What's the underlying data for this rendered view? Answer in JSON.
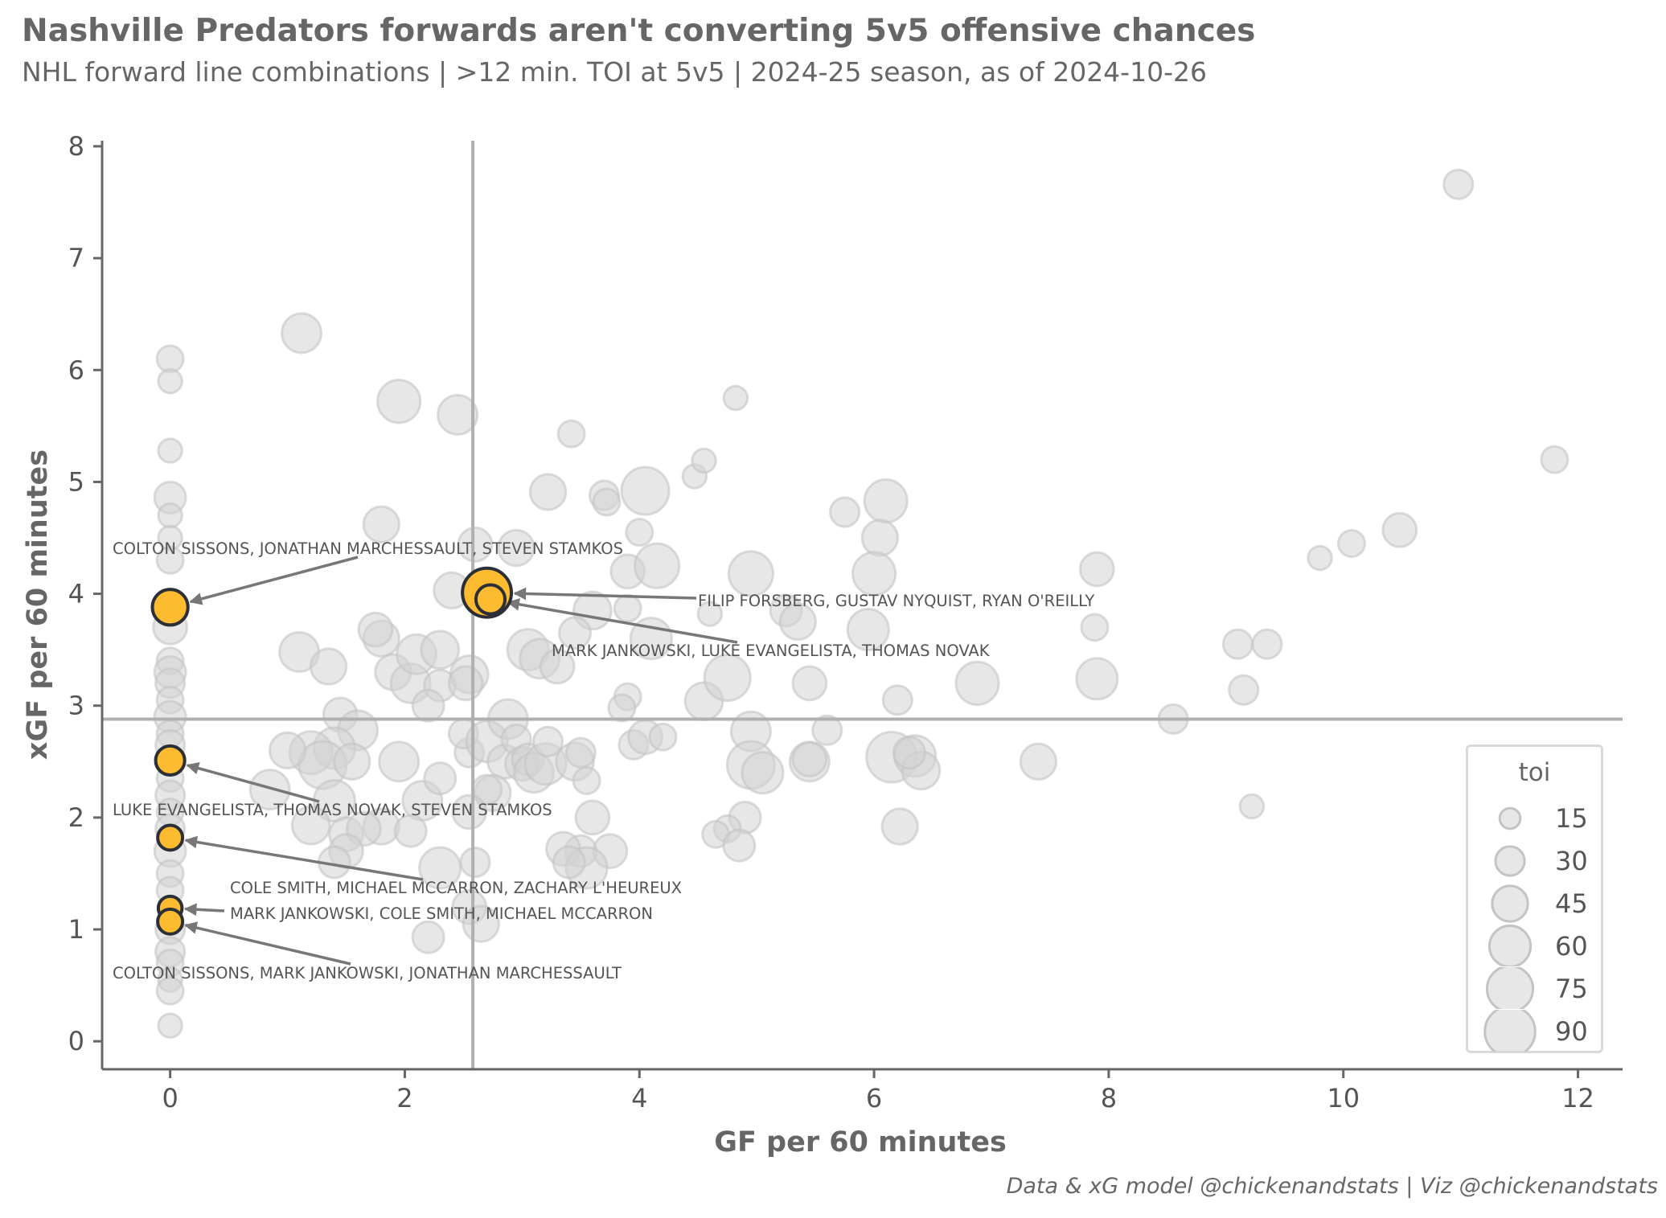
{
  "header": {
    "title": "Nashville Predators forwards aren't converting 5v5 offensive chances",
    "subtitle": "NHL forward line combinations | >12 min. TOI at 5v5 | 2024-25 season, as of 2024-10-26"
  },
  "footer": {
    "credit": "Data & xG model @chickenandstats | Viz @chickenandstats"
  },
  "colors": {
    "highlight": "#FDBB30",
    "highlight_edge": "#2b2f38",
    "background_points": "#d3d3d3",
    "reference_lines": "#b0b0b0",
    "axes": "#666666"
  },
  "chart_data": {
    "type": "scatter",
    "xlabel": "GF per 60 minutes",
    "ylabel": "xGF per 60 minutes",
    "xlim": [
      -0.58,
      12.38
    ],
    "ylim": [
      -0.25,
      8.05
    ],
    "xticks": [
      0,
      2,
      4,
      6,
      8,
      10,
      12
    ],
    "yticks": [
      0,
      1,
      2,
      3,
      4,
      5,
      6,
      7,
      8
    ],
    "reference_lines": {
      "x": 2.58,
      "y": 2.88
    },
    "size_legend": {
      "title": "toi",
      "values": [
        15,
        30,
        45,
        60,
        75,
        90
      ]
    },
    "highlighted_lines": [
      {
        "label": "FILIP FORSBERG, GUSTAV NYQUIST, RYAN O'REILLY",
        "x": 2.7,
        "y": 4.01,
        "toi": 85
      },
      {
        "label": "MARK JANKOWSKI, LUKE EVANGELISTA, THOMAS NOVAK",
        "x": 2.73,
        "y": 3.95,
        "toi": 30
      },
      {
        "label": "COLTON SISSONS, JONATHAN MARCHESSAULT, STEVEN STAMKOS",
        "x": 0.0,
        "y": 3.88,
        "toi": 45
      },
      {
        "label": "LUKE EVANGELISTA, THOMAS NOVAK, STEVEN STAMKOS",
        "x": 0.0,
        "y": 2.51,
        "toi": 30
      },
      {
        "label": "COLE SMITH, MICHAEL MCCARRON, ZACHARY L'HEUREUX",
        "x": 0.0,
        "y": 1.82,
        "toi": 22
      },
      {
        "label": "MARK JANKOWSKI, COLE SMITH, MICHAEL MCCARRON",
        "x": 0.0,
        "y": 1.19,
        "toi": 20
      },
      {
        "label": "COLTON SISSONS, MARK JANKOWSKI, JONATHAN MARCHESSAULT",
        "x": 0.0,
        "y": 1.07,
        "toi": 22
      }
    ],
    "other_lines": [
      {
        "x": 0,
        "y": 6.1,
        "toi": 25
      },
      {
        "x": 0,
        "y": 5.9,
        "toi": 20
      },
      {
        "x": 0,
        "y": 5.28,
        "toi": 20
      },
      {
        "x": 0,
        "y": 4.86,
        "toi": 35
      },
      {
        "x": 0,
        "y": 4.7,
        "toi": 20
      },
      {
        "x": 0,
        "y": 4.5,
        "toi": 20
      },
      {
        "x": 0,
        "y": 4.3,
        "toi": 25
      },
      {
        "x": 0,
        "y": 3.7,
        "toi": 40
      },
      {
        "x": 0,
        "y": 3.4,
        "toi": 25
      },
      {
        "x": 0,
        "y": 3.3,
        "toi": 35
      },
      {
        "x": 0,
        "y": 3.2,
        "toi": 30
      },
      {
        "x": 0,
        "y": 3.05,
        "toi": 25
      },
      {
        "x": 0,
        "y": 2.9,
        "toi": 35
      },
      {
        "x": 0,
        "y": 2.75,
        "toi": 25
      },
      {
        "x": 0,
        "y": 2.65,
        "toi": 30
      },
      {
        "x": 0,
        "y": 2.35,
        "toi": 25
      },
      {
        "x": 0,
        "y": 2.2,
        "toi": 30
      },
      {
        "x": 0,
        "y": 2.05,
        "toi": 25
      },
      {
        "x": 0,
        "y": 1.9,
        "toi": 30
      },
      {
        "x": 0,
        "y": 1.7,
        "toi": 35
      },
      {
        "x": 0,
        "y": 1.5,
        "toi": 25
      },
      {
        "x": 0,
        "y": 1.35,
        "toi": 25
      },
      {
        "x": 0,
        "y": 1.0,
        "toi": 30
      },
      {
        "x": 0,
        "y": 0.8,
        "toi": 30
      },
      {
        "x": 0,
        "y": 0.7,
        "toi": 25
      },
      {
        "x": 0,
        "y": 0.55,
        "toi": 20
      },
      {
        "x": 0,
        "y": 0.45,
        "toi": 25
      },
      {
        "x": 0,
        "y": 0.14,
        "toi": 20
      },
      {
        "x": 1.12,
        "y": 6.33,
        "toi": 55
      },
      {
        "x": 1.95,
        "y": 5.72,
        "toi": 65
      },
      {
        "x": 2.45,
        "y": 5.6,
        "toi": 55
      },
      {
        "x": 1.8,
        "y": 4.62,
        "toi": 45
      },
      {
        "x": 2.6,
        "y": 4.44,
        "toi": 40
      },
      {
        "x": 3.42,
        "y": 5.43,
        "toi": 25
      },
      {
        "x": 3.22,
        "y": 4.91,
        "toi": 45
      },
      {
        "x": 3.7,
        "y": 4.88,
        "toi": 30
      },
      {
        "x": 3.72,
        "y": 4.82,
        "toi": 25
      },
      {
        "x": 4.05,
        "y": 4.92,
        "toi": 80
      },
      {
        "x": 4.47,
        "y": 5.05,
        "toi": 20
      },
      {
        "x": 4.55,
        "y": 5.19,
        "toi": 20
      },
      {
        "x": 4.82,
        "y": 5.75,
        "toi": 20
      },
      {
        "x": 4.0,
        "y": 4.55,
        "toi": 25
      },
      {
        "x": 3.9,
        "y": 4.2,
        "toi": 40
      },
      {
        "x": 4.15,
        "y": 4.25,
        "toi": 70
      },
      {
        "x": 4.95,
        "y": 4.18,
        "toi": 70
      },
      {
        "x": 5.75,
        "y": 4.73,
        "toi": 30
      },
      {
        "x": 6.1,
        "y": 4.83,
        "toi": 65
      },
      {
        "x": 6.05,
        "y": 4.5,
        "toi": 45
      },
      {
        "x": 6.0,
        "y": 4.18,
        "toi": 65
      },
      {
        "x": 2.95,
        "y": 4.41,
        "toi": 45
      },
      {
        "x": 2.4,
        "y": 4.03,
        "toi": 45
      },
      {
        "x": 3.9,
        "y": 3.87,
        "toi": 25
      },
      {
        "x": 3.6,
        "y": 3.85,
        "toi": 50
      },
      {
        "x": 4.1,
        "y": 3.6,
        "toi": 60
      },
      {
        "x": 4.6,
        "y": 3.82,
        "toi": 20
      },
      {
        "x": 5.25,
        "y": 3.85,
        "toi": 35
      },
      {
        "x": 5.35,
        "y": 3.75,
        "toi": 45
      },
      {
        "x": 5.95,
        "y": 3.68,
        "toi": 60
      },
      {
        "x": 3.45,
        "y": 3.65,
        "toi": 35
      },
      {
        "x": 3.05,
        "y": 3.5,
        "toi": 60
      },
      {
        "x": 3.15,
        "y": 3.42,
        "toi": 55
      },
      {
        "x": 3.3,
        "y": 3.35,
        "toi": 40
      },
      {
        "x": 1.1,
        "y": 3.48,
        "toi": 55
      },
      {
        "x": 1.35,
        "y": 3.35,
        "toi": 45
      },
      {
        "x": 1.8,
        "y": 3.6,
        "toi": 45
      },
      {
        "x": 1.75,
        "y": 3.68,
        "toi": 40
      },
      {
        "x": 1.9,
        "y": 3.3,
        "toi": 45
      },
      {
        "x": 2.05,
        "y": 3.2,
        "toi": 55
      },
      {
        "x": 2.1,
        "y": 3.46,
        "toi": 55
      },
      {
        "x": 2.3,
        "y": 3.5,
        "toi": 50
      },
      {
        "x": 2.3,
        "y": 3.18,
        "toi": 35
      },
      {
        "x": 2.2,
        "y": 3.0,
        "toi": 35
      },
      {
        "x": 2.55,
        "y": 3.28,
        "toi": 50
      },
      {
        "x": 2.52,
        "y": 3.2,
        "toi": 40
      },
      {
        "x": 1.45,
        "y": 2.92,
        "toi": 40
      },
      {
        "x": 1.6,
        "y": 2.78,
        "toi": 55
      },
      {
        "x": 1.4,
        "y": 2.62,
        "toi": 60
      },
      {
        "x": 1.2,
        "y": 2.58,
        "toi": 65
      },
      {
        "x": 1.3,
        "y": 2.47,
        "toi": 80
      },
      {
        "x": 1.55,
        "y": 2.5,
        "toi": 45
      },
      {
        "x": 1.0,
        "y": 2.6,
        "toi": 45
      },
      {
        "x": 0.85,
        "y": 2.25,
        "toi": 55
      },
      {
        "x": 1.4,
        "y": 2.15,
        "toi": 60
      },
      {
        "x": 2.15,
        "y": 2.15,
        "toi": 55
      },
      {
        "x": 1.8,
        "y": 1.92,
        "toi": 45
      },
      {
        "x": 1.2,
        "y": 1.93,
        "toi": 50
      },
      {
        "x": 1.5,
        "y": 1.85,
        "toi": 40
      },
      {
        "x": 1.65,
        "y": 1.9,
        "toi": 40
      },
      {
        "x": 2.05,
        "y": 1.88,
        "toi": 35
      },
      {
        "x": 1.5,
        "y": 1.7,
        "toi": 40
      },
      {
        "x": 1.4,
        "y": 1.6,
        "toi": 35
      },
      {
        "x": 1.95,
        "y": 2.5,
        "toi": 55
      },
      {
        "x": 2.55,
        "y": 2.58,
        "toi": 30
      },
      {
        "x": 2.5,
        "y": 2.75,
        "toi": 30
      },
      {
        "x": 2.7,
        "y": 2.68,
        "toi": 60
      },
      {
        "x": 2.88,
        "y": 2.88,
        "toi": 55
      },
      {
        "x": 2.85,
        "y": 2.5,
        "toi": 40
      },
      {
        "x": 2.75,
        "y": 2.22,
        "toi": 45
      },
      {
        "x": 2.7,
        "y": 2.25,
        "toi": 30
      },
      {
        "x": 2.95,
        "y": 2.7,
        "toi": 30
      },
      {
        "x": 3.0,
        "y": 2.48,
        "toi": 40
      },
      {
        "x": 3.05,
        "y": 2.52,
        "toi": 35
      },
      {
        "x": 3.1,
        "y": 2.4,
        "toi": 55
      },
      {
        "x": 3.2,
        "y": 2.48,
        "toi": 60
      },
      {
        "x": 3.22,
        "y": 2.68,
        "toi": 30
      },
      {
        "x": 3.45,
        "y": 2.5,
        "toi": 50
      },
      {
        "x": 3.5,
        "y": 2.58,
        "toi": 30
      },
      {
        "x": 3.55,
        "y": 2.33,
        "toi": 25
      },
      {
        "x": 3.6,
        "y": 2.0,
        "toi": 40
      },
      {
        "x": 3.9,
        "y": 3.08,
        "toi": 25
      },
      {
        "x": 3.85,
        "y": 2.98,
        "toi": 25
      },
      {
        "x": 3.95,
        "y": 2.65,
        "toi": 30
      },
      {
        "x": 4.05,
        "y": 2.72,
        "toi": 40
      },
      {
        "x": 4.2,
        "y": 2.72,
        "toi": 25
      },
      {
        "x": 4.55,
        "y": 3.04,
        "toi": 50
      },
      {
        "x": 4.75,
        "y": 3.25,
        "toi": 75
      },
      {
        "x": 4.95,
        "y": 2.77,
        "toi": 55
      },
      {
        "x": 4.95,
        "y": 2.47,
        "toi": 80
      },
      {
        "x": 5.05,
        "y": 2.4,
        "toi": 60
      },
      {
        "x": 5.45,
        "y": 2.5,
        "toi": 55
      },
      {
        "x": 5.45,
        "y": 2.52,
        "toi": 40
      },
      {
        "x": 5.45,
        "y": 3.2,
        "toi": 40
      },
      {
        "x": 5.6,
        "y": 2.78,
        "toi": 30
      },
      {
        "x": 6.2,
        "y": 3.05,
        "toi": 30
      },
      {
        "x": 6.15,
        "y": 2.54,
        "toi": 90
      },
      {
        "x": 6.35,
        "y": 2.55,
        "toi": 60
      },
      {
        "x": 6.4,
        "y": 2.42,
        "toi": 50
      },
      {
        "x": 6.3,
        "y": 2.58,
        "toi": 35
      },
      {
        "x": 6.88,
        "y": 3.2,
        "toi": 65
      },
      {
        "x": 7.4,
        "y": 2.5,
        "toi": 45
      },
      {
        "x": 6.22,
        "y": 1.92,
        "toi": 45
      },
      {
        "x": 4.9,
        "y": 2.0,
        "toi": 35
      },
      {
        "x": 4.75,
        "y": 1.9,
        "toi": 25
      },
      {
        "x": 4.65,
        "y": 1.85,
        "toi": 25
      },
      {
        "x": 4.85,
        "y": 1.75,
        "toi": 35
      },
      {
        "x": 3.75,
        "y": 1.7,
        "toi": 40
      },
      {
        "x": 3.5,
        "y": 1.7,
        "toi": 35
      },
      {
        "x": 3.35,
        "y": 1.72,
        "toi": 40
      },
      {
        "x": 3.55,
        "y": 1.55,
        "toi": 60
      },
      {
        "x": 3.4,
        "y": 1.6,
        "toi": 35
      },
      {
        "x": 2.3,
        "y": 1.55,
        "toi": 60
      },
      {
        "x": 2.6,
        "y": 1.6,
        "toi": 30
      },
      {
        "x": 2.55,
        "y": 1.2,
        "toi": 40
      },
      {
        "x": 2.65,
        "y": 1.05,
        "toi": 45
      },
      {
        "x": 2.2,
        "y": 0.93,
        "toi": 35
      },
      {
        "x": 2.3,
        "y": 2.35,
        "toi": 35
      },
      {
        "x": 2.55,
        "y": 2.05,
        "toi": 40
      },
      {
        "x": 7.9,
        "y": 4.22,
        "toi": 40
      },
      {
        "x": 7.88,
        "y": 3.7,
        "toi": 25
      },
      {
        "x": 7.9,
        "y": 3.24,
        "toi": 60
      },
      {
        "x": 8.55,
        "y": 2.88,
        "toi": 30
      },
      {
        "x": 9.1,
        "y": 3.55,
        "toi": 30
      },
      {
        "x": 9.35,
        "y": 3.55,
        "toi": 30
      },
      {
        "x": 9.15,
        "y": 3.14,
        "toi": 30
      },
      {
        "x": 9.22,
        "y": 2.1,
        "toi": 20
      },
      {
        "x": 9.8,
        "y": 4.32,
        "toi": 20
      },
      {
        "x": 10.07,
        "y": 4.45,
        "toi": 25
      },
      {
        "x": 10.48,
        "y": 4.57,
        "toi": 40
      },
      {
        "x": 10.98,
        "y": 7.66,
        "toi": 30
      },
      {
        "x": 11.8,
        "y": 5.2,
        "toi": 25
      }
    ]
  }
}
